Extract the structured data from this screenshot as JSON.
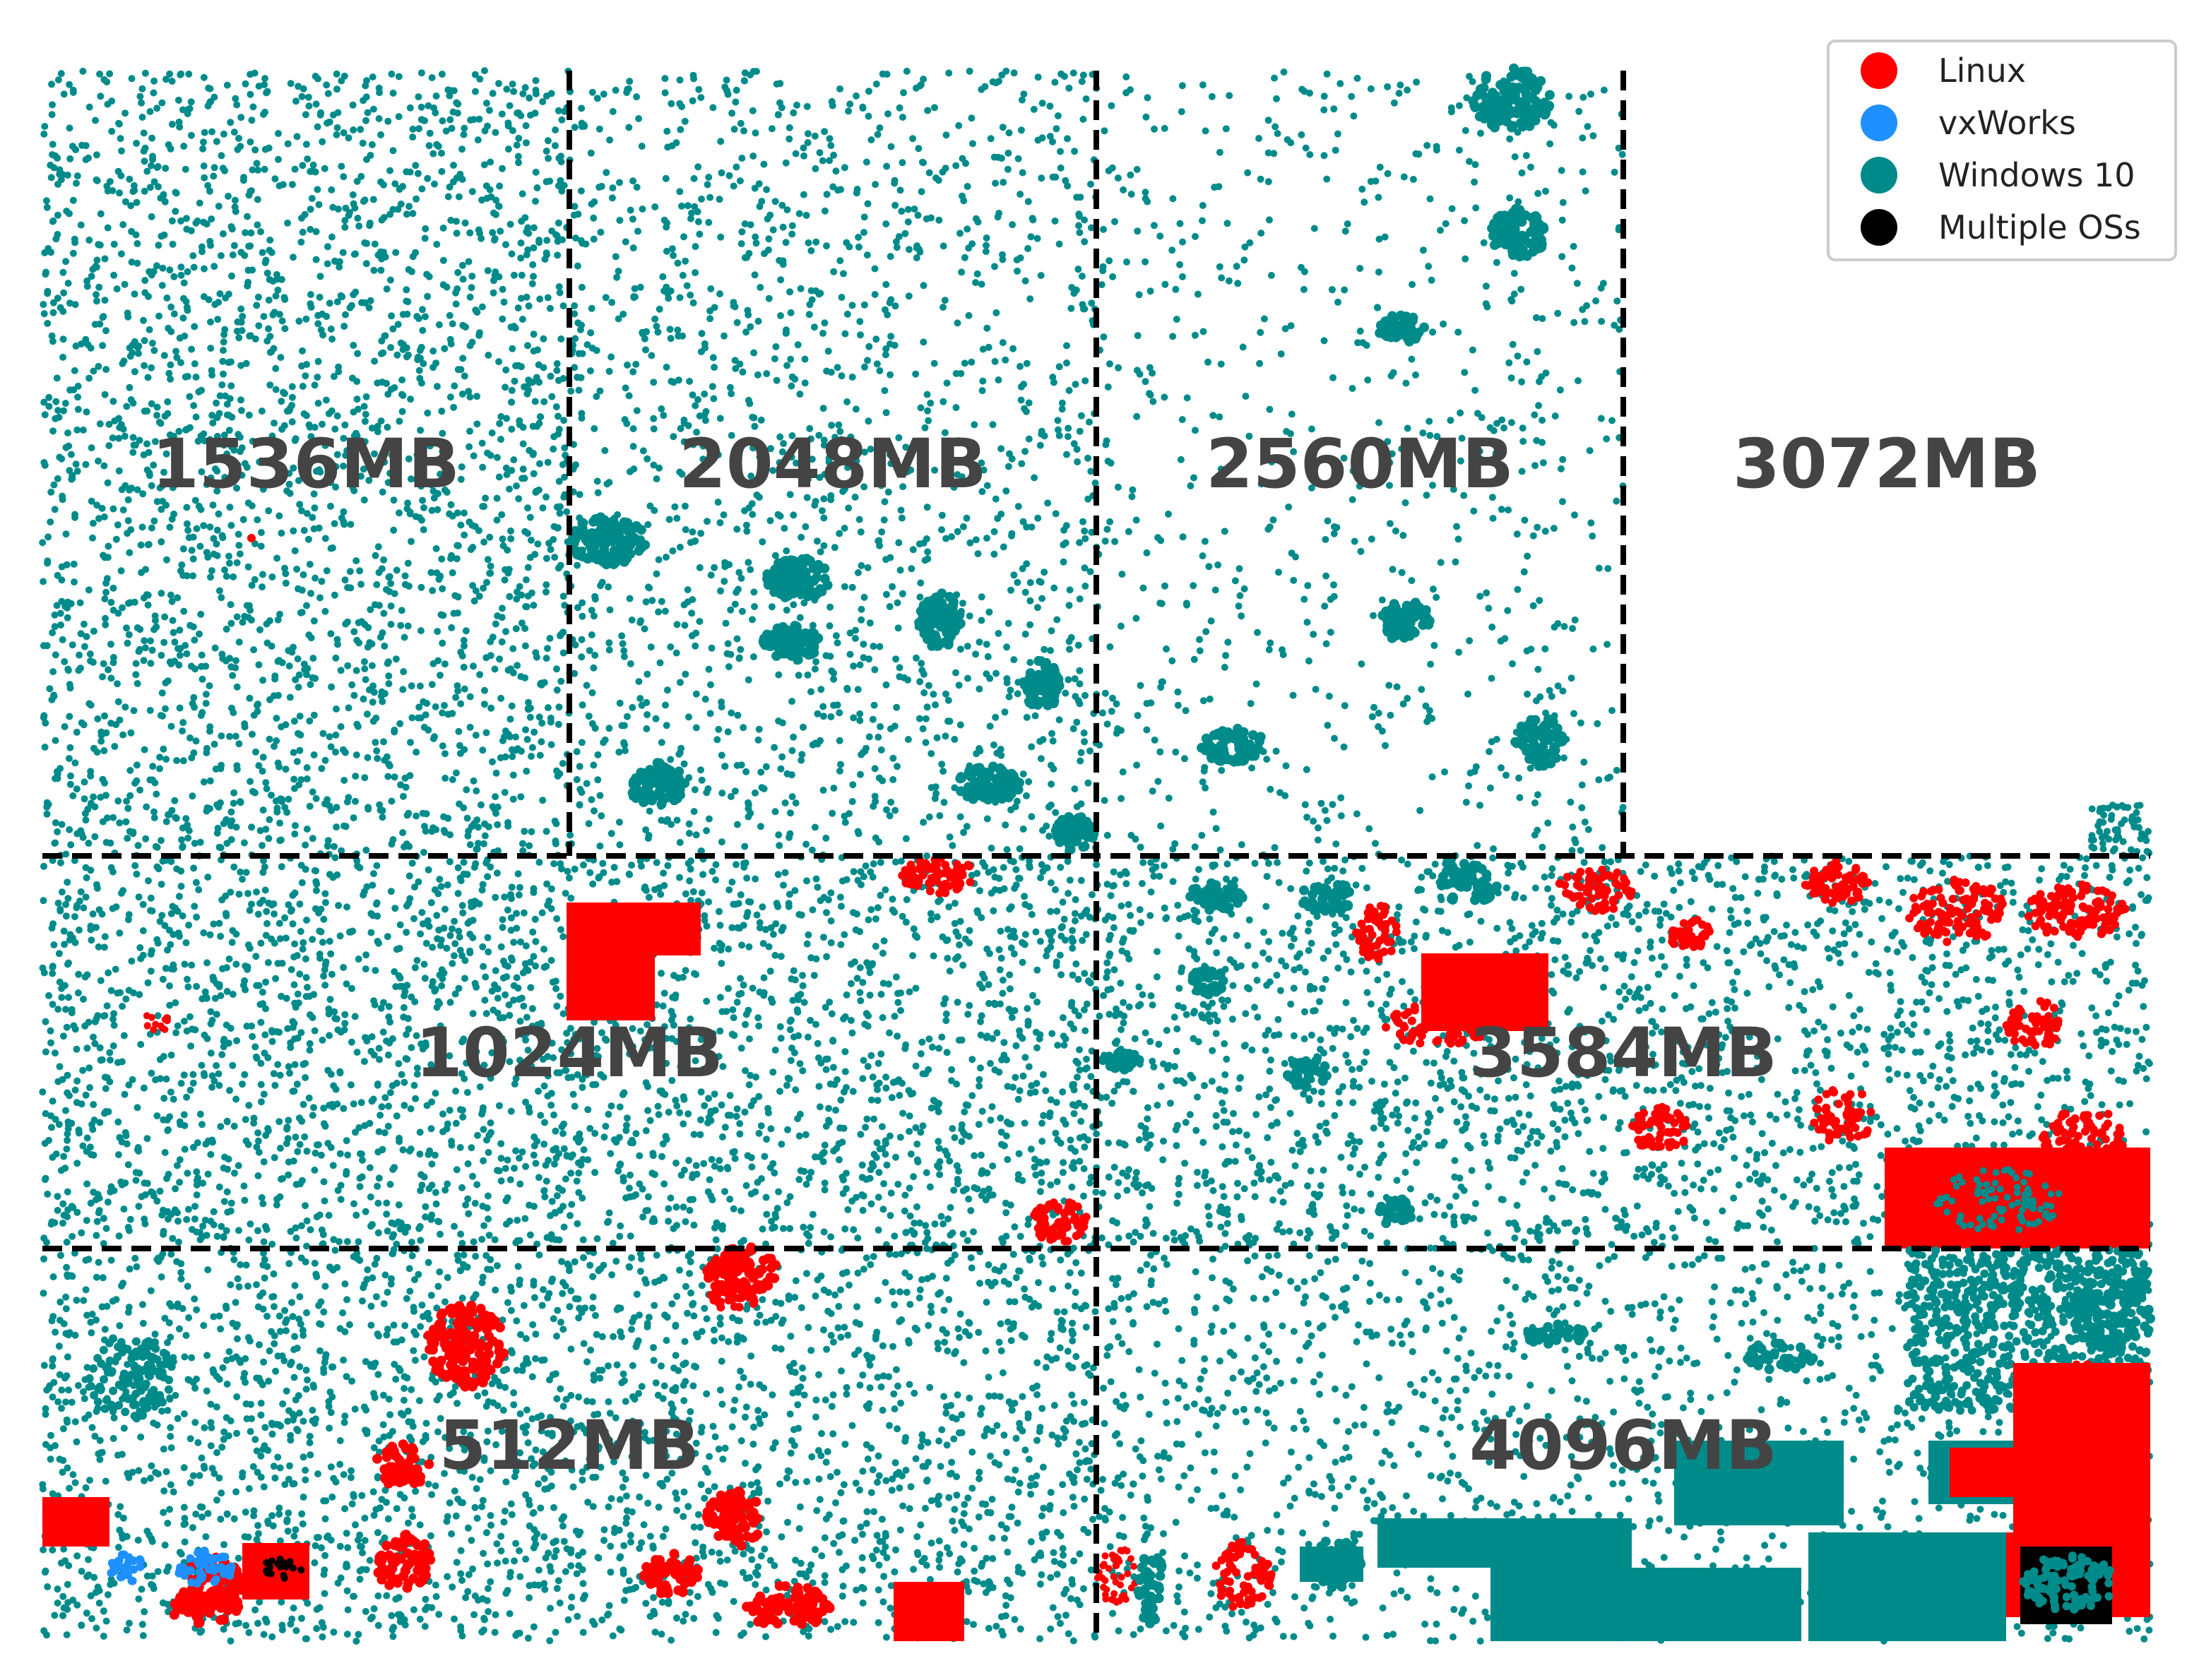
{
  "chart_data": {
    "type": "scatter",
    "title": "",
    "xlabel": "",
    "ylabel": "",
    "axes_visible": false,
    "grid": false,
    "legend_position": "top-right",
    "regions": [
      {
        "label": "512MB",
        "grid_span": {
          "col": [
            0,
            2
          ],
          "row": [
            2,
            3
          ]
        }
      },
      {
        "label": "1024MB",
        "grid_span": {
          "col": [
            0,
            2
          ],
          "row": [
            1,
            2
          ]
        }
      },
      {
        "label": "1536MB",
        "grid_span": {
          "col": [
            0,
            1
          ],
          "row": [
            0,
            1
          ]
        }
      },
      {
        "label": "2048MB",
        "grid_span": {
          "col": [
            1,
            2
          ],
          "row": [
            0,
            1
          ]
        }
      },
      {
        "label": "2560MB",
        "grid_span": {
          "col": [
            2,
            3
          ],
          "row": [
            0,
            1
          ]
        }
      },
      {
        "label": "3072MB",
        "grid_span": {
          "col": [
            3,
            4
          ],
          "row": [
            0,
            1
          ]
        }
      },
      {
        "label": "3584MB",
        "grid_span": {
          "col": [
            2,
            4
          ],
          "row": [
            1,
            2
          ]
        }
      },
      {
        "label": "4096MB",
        "grid_span": {
          "col": [
            2,
            4
          ],
          "row": [
            2,
            3
          ]
        }
      }
    ],
    "series": [
      {
        "name": "Linux",
        "color": "#ff0000"
      },
      {
        "name": "vxWorks",
        "color": "#1e90ff"
      },
      {
        "name": "Windows 10",
        "color": "#008b8b"
      },
      {
        "name": "Multiple OSs",
        "color": "#000000"
      }
    ]
  },
  "legend": {
    "items": [
      {
        "label": "Linux",
        "color": "#ff0000"
      },
      {
        "label": "vxWorks",
        "color": "#1e90ff"
      },
      {
        "label": "Windows 10",
        "color": "#008b8b"
      },
      {
        "label": "Multiple OSs",
        "color": "#000000"
      }
    ]
  }
}
